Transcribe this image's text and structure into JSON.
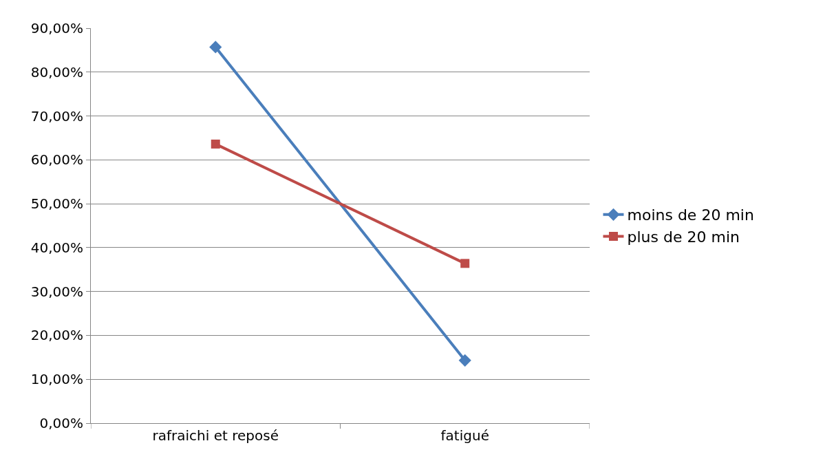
{
  "chart_data": {
    "type": "line",
    "categories": [
      "rafraichi et reposé",
      "fatigué"
    ],
    "series": [
      {
        "name": "moins de 20 min",
        "color": "#4a7ebb",
        "values": [
          85.7,
          14.3
        ],
        "marker": "diamond"
      },
      {
        "name": "plus de 20 min",
        "color": "#be4b48",
        "values": [
          63.6,
          36.4
        ],
        "marker": "square"
      }
    ],
    "ylim": [
      0,
      90
    ],
    "yticks": [
      {
        "value": 0,
        "label": "0,00%"
      },
      {
        "value": 10,
        "label": "10,00%"
      },
      {
        "value": 20,
        "label": "20,00%"
      },
      {
        "value": 30,
        "label": "30,00%"
      },
      {
        "value": 40,
        "label": "40,00%"
      },
      {
        "value": 50,
        "label": "50,00%"
      },
      {
        "value": 60,
        "label": "60,00%"
      },
      {
        "value": 70,
        "label": "70,00%"
      },
      {
        "value": 80,
        "label": "80,00%"
      },
      {
        "value": 90,
        "label": "90,00%"
      }
    ],
    "grid": "y",
    "legend": "right",
    "line_style": "solid"
  }
}
